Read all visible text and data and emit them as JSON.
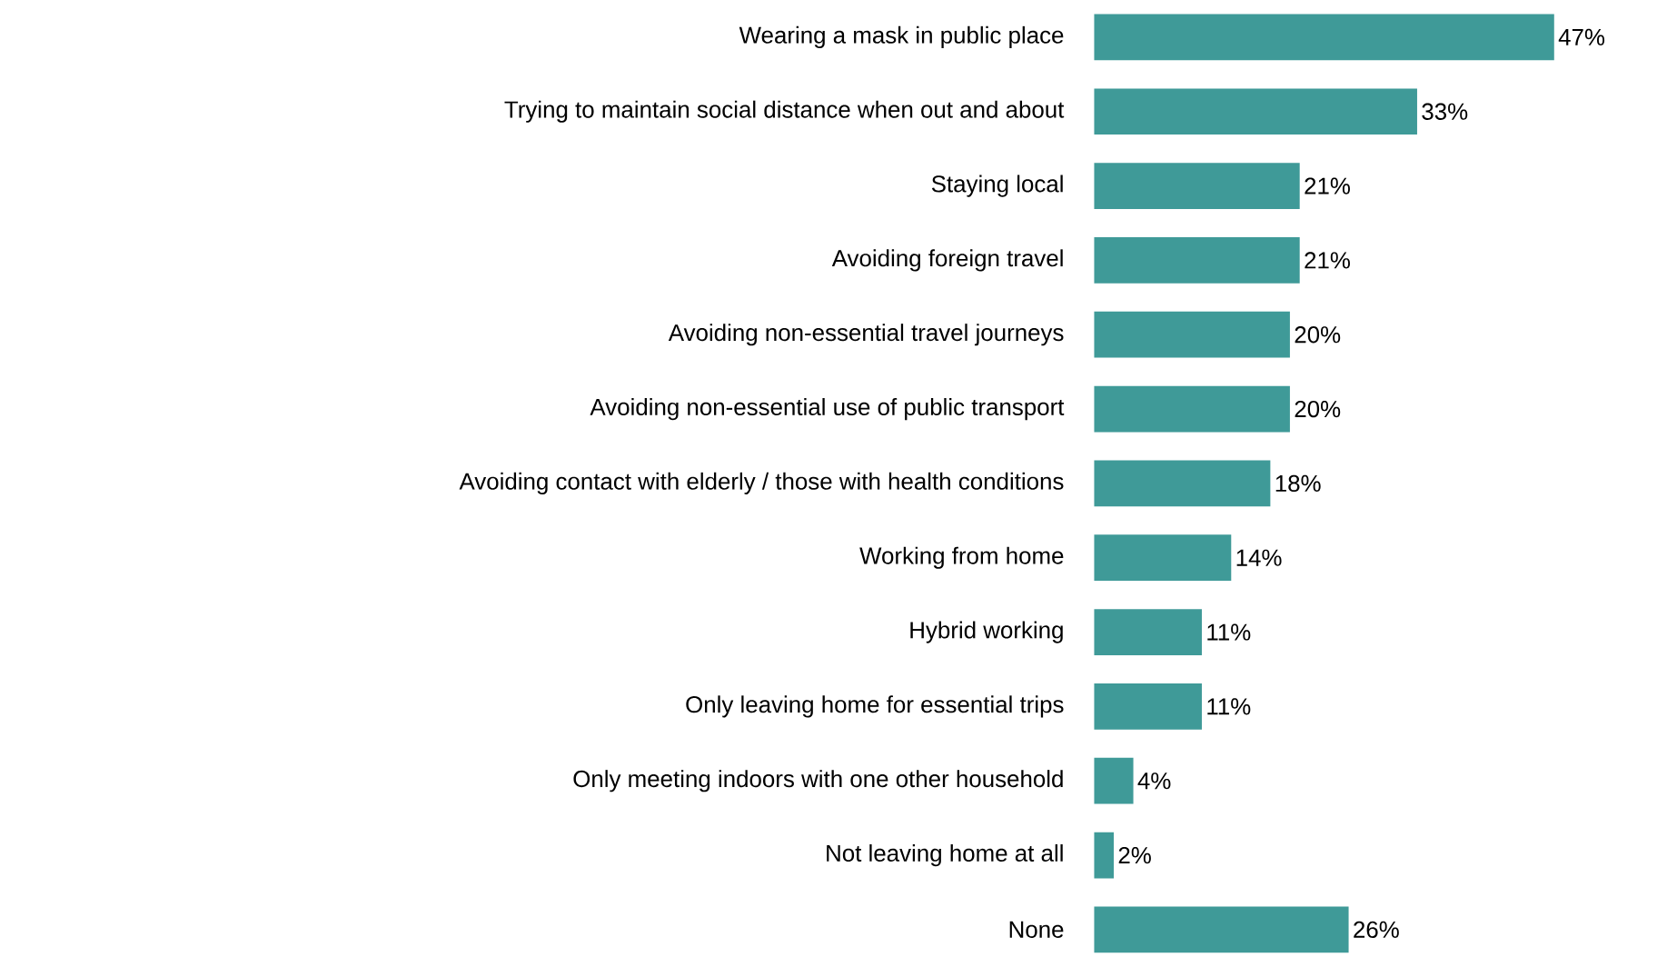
{
  "chart_data": {
    "type": "bar",
    "orientation": "horizontal",
    "color": "#3f9a98",
    "categories": [
      "Wearing a mask in public place",
      "Trying to maintain social distance when out and about",
      "Staying local",
      "Avoiding foreign travel",
      "Avoiding non-essential travel journeys",
      "Avoiding non-essential use of public transport",
      "Avoiding contact with elderly / those with health conditions",
      "Working from home",
      "Hybrid working",
      "Only leaving home for essential trips",
      "Only meeting indoors with one other household",
      "Not leaving home at all",
      "None"
    ],
    "values": [
      47,
      33,
      21,
      21,
      20,
      20,
      18,
      14,
      11,
      11,
      4,
      2,
      26
    ],
    "value_labels": [
      "47%",
      "33%",
      "21%",
      "21%",
      "20%",
      "20%",
      "18%",
      "14%",
      "11%",
      "11%",
      "4%",
      "2%",
      "26%"
    ]
  }
}
